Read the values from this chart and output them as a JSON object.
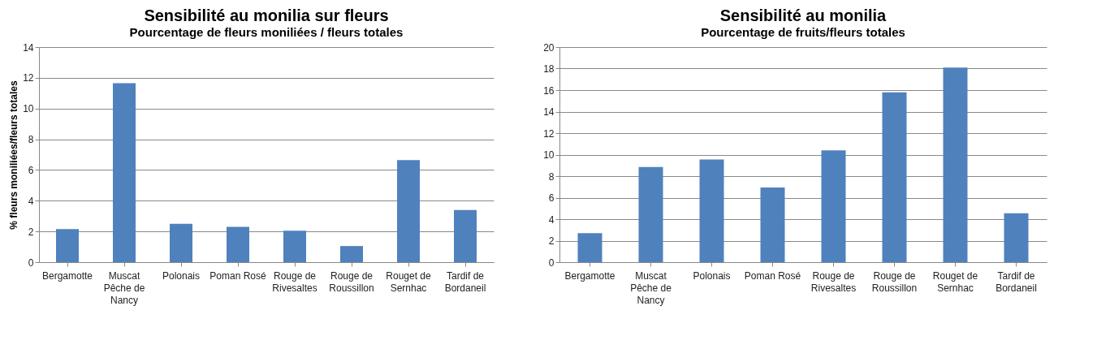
{
  "chart_data": [
    {
      "type": "bar",
      "title": "Sensibilité au monilia sur fleurs",
      "subtitle": "Pourcentage de fleurs moniliées / fleurs totales",
      "ylabel": "% fleurs moniliées/fleurs totales",
      "categories": [
        "Bergamotte",
        "Muscat Pêche de Nancy",
        "Polonais",
        "Poman Rosé",
        "Rouge de Rivesaltes",
        "Rouge de Roussillon",
        "Rouget de Sernhac",
        "Tardif de Bordaneil"
      ],
      "values": [
        2.15,
        11.65,
        2.5,
        2.3,
        2.05,
        1.05,
        6.65,
        3.4
      ],
      "color": "#4f81bd",
      "ylim": [
        0,
        14
      ],
      "yticks": [
        0,
        2,
        4,
        6,
        8,
        10,
        12,
        14
      ],
      "grid": "y"
    },
    {
      "type": "bar",
      "title": "Sensibilité au monilia",
      "subtitle": "Pourcentage de fruits/fleurs totales",
      "categories": [
        "Bergamotte",
        "Muscat Pêche de Nancy",
        "Polonais",
        "Poman Rosé",
        "Rouge de Rivesaltes",
        "Rouge de Roussillon",
        "Rouget de Sernhac",
        "Tardif de Bordaneil"
      ],
      "values": [
        2.7,
        8.85,
        9.55,
        6.95,
        10.4,
        15.8,
        18.1,
        4.55
      ],
      "color": "#4f81bd",
      "ylim": [
        0,
        20
      ],
      "yticks": [
        0,
        2,
        4,
        6,
        8,
        10,
        12,
        14,
        16,
        18,
        20
      ],
      "grid": "y"
    }
  ]
}
